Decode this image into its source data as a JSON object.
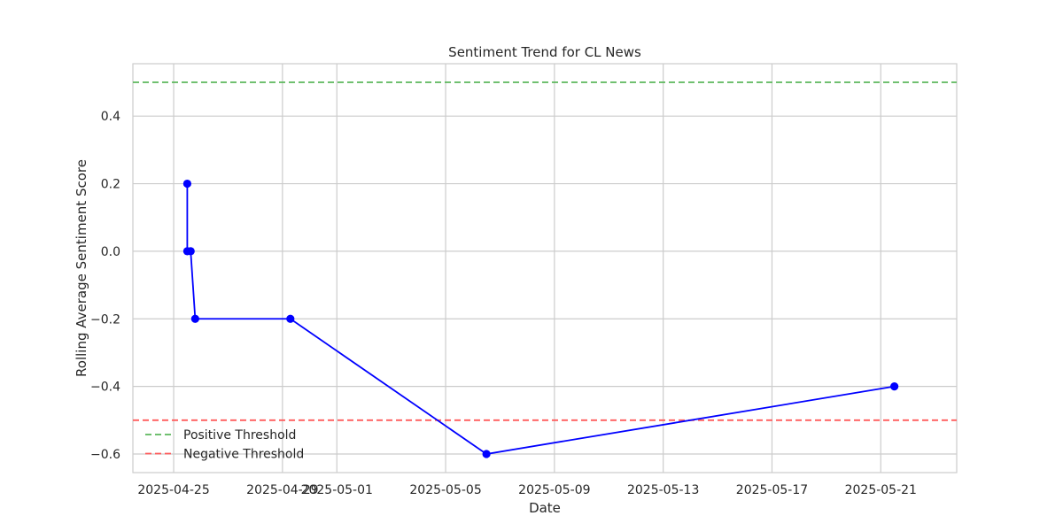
{
  "chart_data": {
    "type": "line",
    "title": "Sentiment Trend for CL News",
    "xlabel": "Date",
    "ylabel": "Rolling Average Sentiment Score",
    "x_axis_type": "date",
    "xlim": [
      "2025-04-23T12:00",
      "2025-05-23T19:00"
    ],
    "ylim": [
      -0.655,
      0.555
    ],
    "x_ticks": [
      "2025-04-25",
      "2025-04-29",
      "2025-05-01",
      "2025-05-05",
      "2025-05-09",
      "2025-05-13",
      "2025-05-17",
      "2025-05-21"
    ],
    "y_ticks": [
      -0.6,
      -0.4,
      -0.2,
      0.0,
      0.2,
      0.4
    ],
    "y_tick_labels": [
      "−0.6",
      "−0.4",
      "−0.2",
      "0.0",
      "0.2",
      "0.4"
    ],
    "grid": true,
    "legend_position": "lower-left",
    "series": [
      {
        "color": "#0000ff",
        "marker": "circle",
        "points": [
          {
            "x": "2025-04-25T12:00",
            "y": 0.2
          },
          {
            "x": "2025-04-25T12:00",
            "y": 0.0
          },
          {
            "x": "2025-04-25T15:00",
            "y": 0.0
          },
          {
            "x": "2025-04-25T19:00",
            "y": -0.2
          },
          {
            "x": "2025-04-29T07:00",
            "y": -0.2
          },
          {
            "x": "2025-05-06T12:00",
            "y": -0.6
          },
          {
            "x": "2025-05-21T12:00",
            "y": -0.4
          }
        ]
      }
    ],
    "thresholds": [
      {
        "name": "Positive Threshold",
        "value": 0.5,
        "color": "#5cb85c",
        "style": "dashed"
      },
      {
        "name": "Negative Threshold",
        "value": -0.5,
        "color": "#ff5c5c",
        "style": "dashed"
      }
    ]
  }
}
